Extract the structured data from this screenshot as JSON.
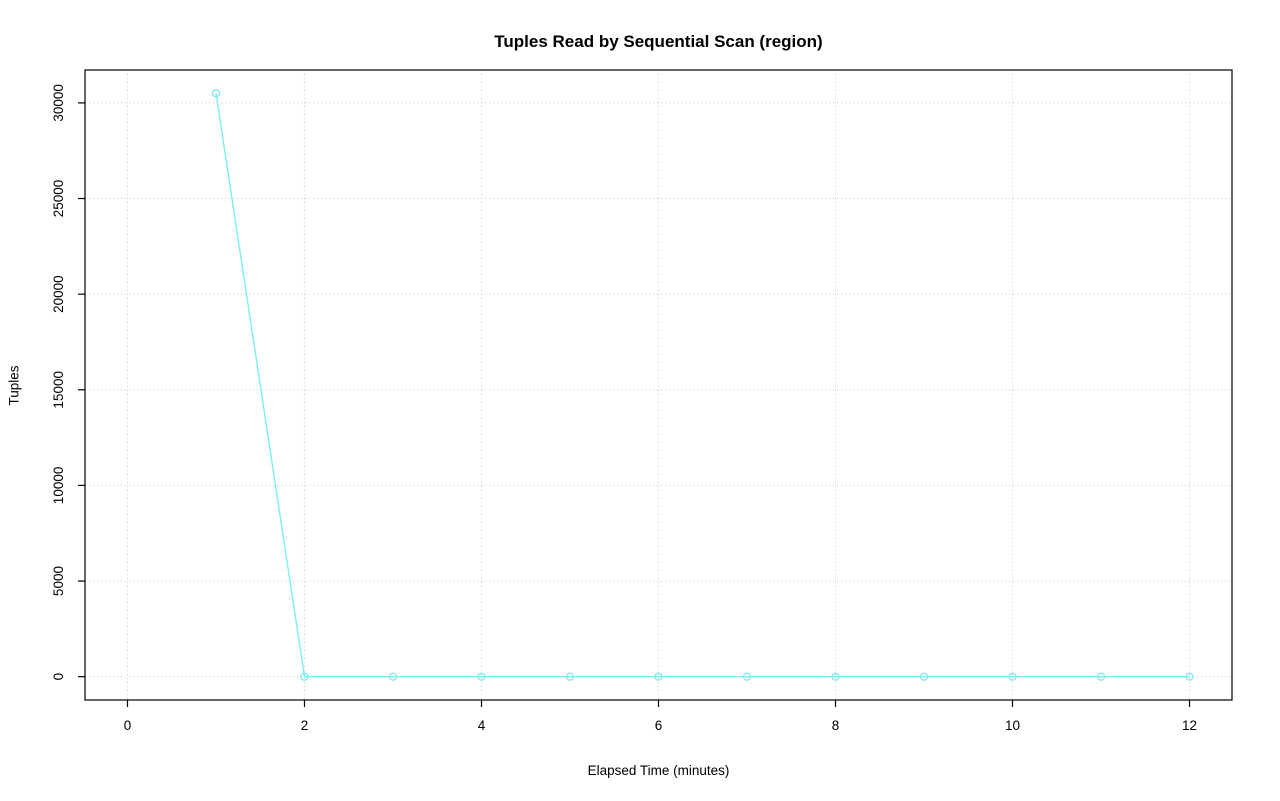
{
  "chart_data": {
    "type": "line",
    "title": "Tuples Read by Sequential Scan (region)",
    "xlabel": "Elapsed Time (minutes)",
    "ylabel": "Tuples",
    "x": [
      1,
      2,
      3,
      4,
      5,
      6,
      7,
      8,
      9,
      10,
      11,
      12
    ],
    "y": [
      30500,
      0,
      0,
      0,
      0,
      0,
      0,
      0,
      0,
      0,
      0,
      0
    ],
    "x_ticks": [
      0,
      2,
      4,
      6,
      8,
      10,
      12
    ],
    "y_ticks": [
      0,
      5000,
      10000,
      15000,
      20000,
      25000,
      30000
    ],
    "xlim": [
      -0.48,
      12.48
    ],
    "ylim": [
      -1220,
      31720
    ],
    "grid": true,
    "grid_style": "dotted",
    "legend": "none",
    "series": [
      {
        "name": "region",
        "color": "#7DEFEF",
        "point_style": "open-circle"
      }
    ],
    "text_color": "#000000",
    "grid_color": "#c9c9c9",
    "border_color": "#000000",
    "background": "#ffffff"
  }
}
